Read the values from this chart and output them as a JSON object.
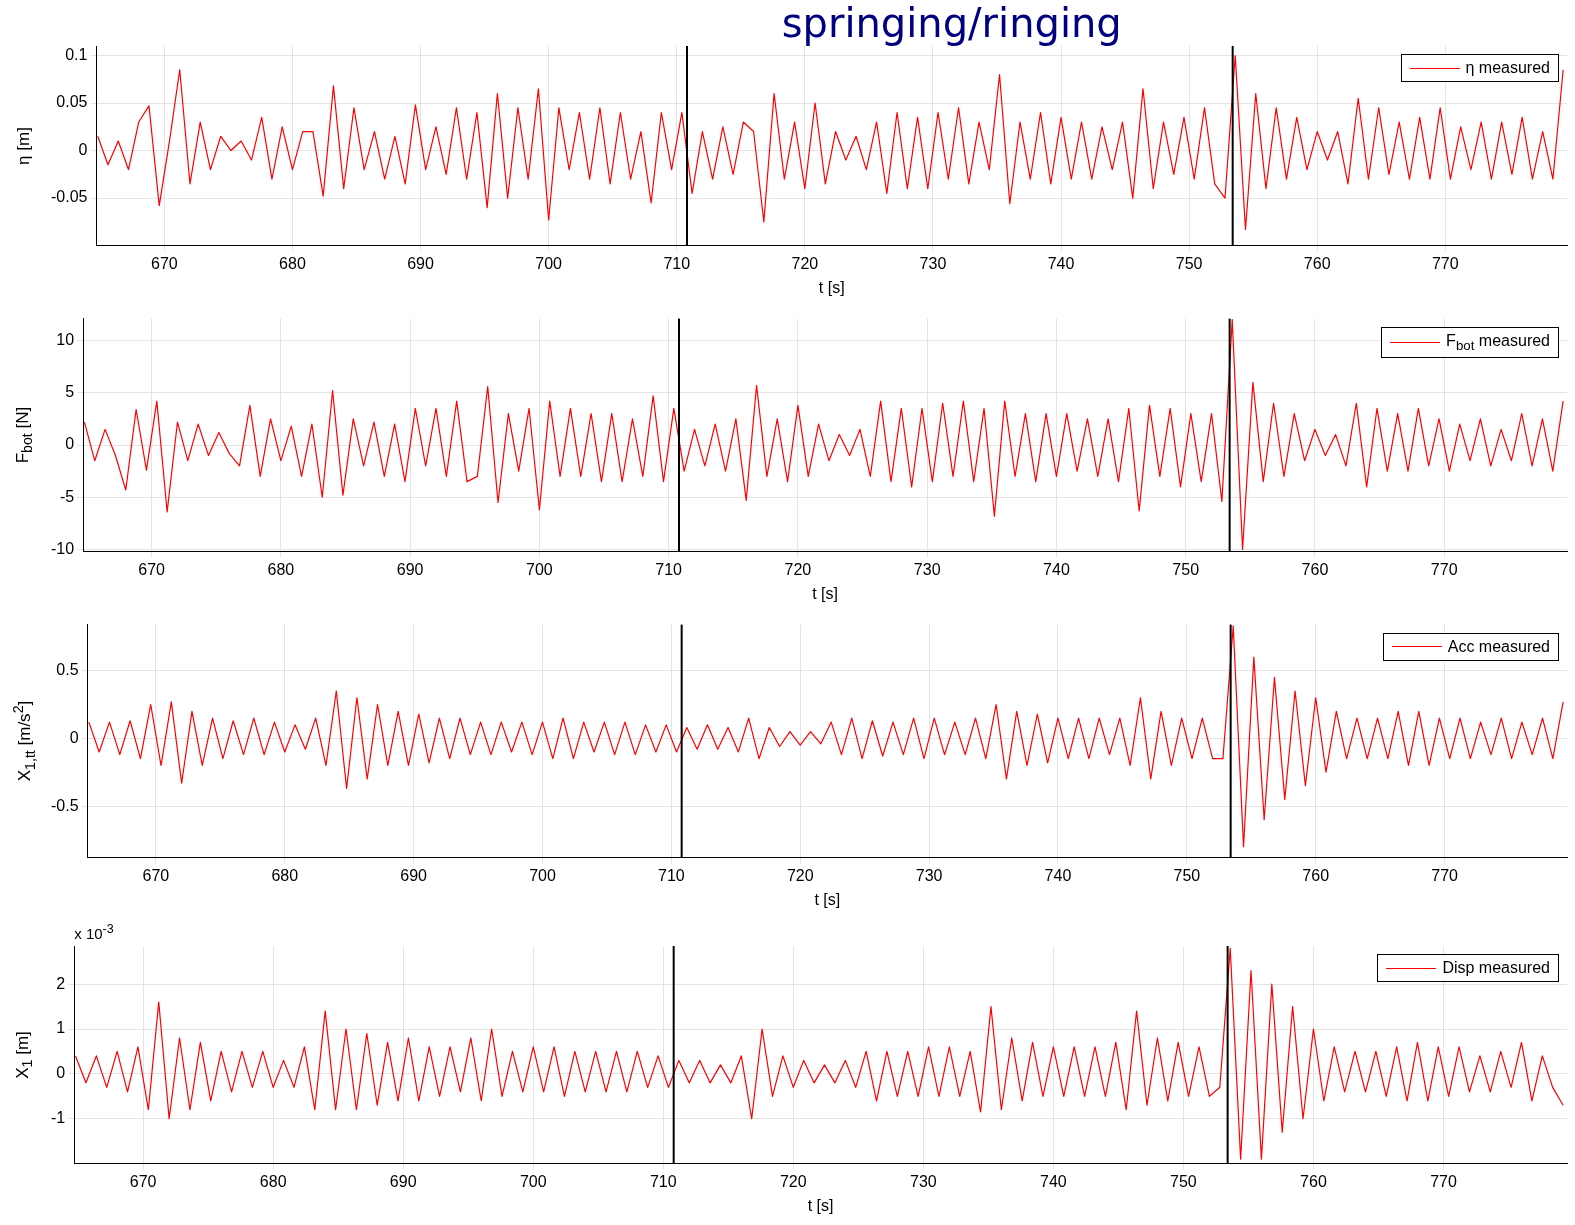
{
  "chart_data": [
    {
      "type": "line",
      "title": "springing/ringing",
      "xlabel": "t [s]",
      "ylabel": "η [m]",
      "xlim": [
        664.7,
        779.5
      ],
      "xticks": [
        670,
        680,
        690,
        700,
        710,
        720,
        730,
        740,
        750,
        760,
        770
      ],
      "ylim": [
        -0.1,
        0.11
      ],
      "yticks": [
        -0.05,
        0,
        0.05,
        0.1
      ],
      "grid": true,
      "legend": "top right",
      "ref_lines": [
        {
          "axis": "x",
          "value": 710.8,
          "color": "#000000"
        },
        {
          "axis": "x",
          "value": 753.4,
          "color": "#000000"
        }
      ],
      "x": [
        664.8,
        665.6,
        666.4,
        667.2,
        668.0,
        668.8,
        669.6,
        670.4,
        671.2,
        672.0,
        672.8,
        673.6,
        674.4,
        675.2,
        676.0,
        676.8,
        677.6,
        678.4,
        679.2,
        680.0,
        680.8,
        681.6,
        682.4,
        683.2,
        684.0,
        684.8,
        685.6,
        686.4,
        687.2,
        688.0,
        688.8,
        689.6,
        690.4,
        691.2,
        692.0,
        692.8,
        693.6,
        694.4,
        695.2,
        696.0,
        696.8,
        697.6,
        698.4,
        699.2,
        700.0,
        700.8,
        701.6,
        702.4,
        703.2,
        704.0,
        704.8,
        705.6,
        706.4,
        707.2,
        708.0,
        708.8,
        709.6,
        710.4,
        711.2,
        712.0,
        712.8,
        713.6,
        714.4,
        715.2,
        716.0,
        716.8,
        717.6,
        718.4,
        719.2,
        720.0,
        720.8,
        721.6,
        722.4,
        723.2,
        724.0,
        724.8,
        725.6,
        726.4,
        727.2,
        728.0,
        728.8,
        729.6,
        730.4,
        731.2,
        732.0,
        732.8,
        733.6,
        734.4,
        735.2,
        736.0,
        736.8,
        737.6,
        738.4,
        739.2,
        740.0,
        740.8,
        741.6,
        742.4,
        743.2,
        744.0,
        744.8,
        745.6,
        746.4,
        747.2,
        748.0,
        748.8,
        749.6,
        750.4,
        751.2,
        752.0,
        752.8,
        753.6,
        754.4,
        755.2,
        756.0,
        756.8,
        757.6,
        758.4,
        759.2,
        760.0,
        760.8,
        761.6,
        762.4,
        763.2,
        764.0,
        764.8,
        765.6,
        766.4,
        767.2,
        768.0,
        768.8,
        769.6,
        770.4,
        771.2,
        772.0,
        772.8,
        773.6,
        774.4,
        775.2,
        776.0,
        776.8,
        777.6,
        778.4,
        779.2
      ],
      "series": [
        {
          "name": "η measured",
          "color": "#ff0000",
          "values": [
            0.015,
            -0.015,
            0.01,
            -0.02,
            0.03,
            0.047,
            -0.058,
            0.01,
            0.085,
            -0.035,
            0.03,
            -0.02,
            0.015,
            0.0,
            0.01,
            -0.01,
            0.035,
            -0.03,
            0.025,
            -0.02,
            0.02,
            0.02,
            -0.048,
            0.068,
            -0.04,
            0.045,
            -0.02,
            0.02,
            -0.03,
            0.015,
            -0.035,
            0.048,
            -0.02,
            0.025,
            -0.025,
            0.045,
            -0.03,
            0.04,
            -0.06,
            0.06,
            -0.05,
            0.045,
            -0.03,
            0.065,
            -0.073,
            0.045,
            -0.02,
            0.04,
            -0.03,
            0.045,
            -0.035,
            0.04,
            -0.03,
            0.02,
            -0.055,
            0.04,
            -0.02,
            0.04,
            -0.045,
            0.02,
            -0.03,
            0.025,
            -0.025,
            0.03,
            0.02,
            -0.075,
            0.06,
            -0.03,
            0.03,
            -0.04,
            0.05,
            -0.035,
            0.02,
            -0.01,
            0.015,
            -0.02,
            0.03,
            -0.045,
            0.04,
            -0.04,
            0.035,
            -0.04,
            0.04,
            -0.03,
            0.045,
            -0.035,
            0.03,
            -0.02,
            0.08,
            -0.056,
            0.03,
            -0.03,
            0.04,
            -0.035,
            0.035,
            -0.03,
            0.03,
            -0.03,
            0.025,
            -0.02,
            0.03,
            -0.05,
            0.065,
            -0.04,
            0.03,
            -0.025,
            0.035,
            -0.03,
            0.045,
            -0.035,
            -0.05,
            0.1,
            -0.083,
            0.06,
            -0.04,
            0.045,
            -0.03,
            0.035,
            -0.02,
            0.02,
            -0.01,
            0.02,
            -0.035,
            0.055,
            -0.03,
            0.045,
            -0.025,
            0.03,
            -0.03,
            0.035,
            -0.03,
            0.045,
            -0.03,
            0.025,
            -0.02,
            0.03,
            -0.03,
            0.03,
            -0.025,
            0.035,
            -0.03,
            0.02,
            -0.03,
            0.085
          ]
        }
      ]
    },
    {
      "type": "line",
      "xlabel": "t [s]",
      "ylabel": "F$_{bot}$ [N]",
      "xlim": [
        664.7,
        779.5
      ],
      "xticks": [
        670,
        680,
        690,
        700,
        710,
        720,
        730,
        740,
        750,
        760,
        770
      ],
      "ylim": [
        -10.2,
        12.1
      ],
      "yticks": [
        -10,
        -5,
        0,
        5,
        10
      ],
      "grid": true,
      "legend": "top right",
      "ref_lines": [
        {
          "axis": "x",
          "value": 710.8,
          "color": "#000000"
        },
        {
          "axis": "x",
          "value": 753.4,
          "color": "#000000"
        }
      ],
      "x": [
        664.8,
        665.6,
        666.4,
        667.2,
        668.0,
        668.8,
        669.6,
        670.4,
        671.2,
        672.0,
        672.8,
        673.6,
        674.4,
        675.2,
        676.0,
        676.8,
        677.6,
        678.4,
        679.2,
        680.0,
        680.8,
        681.6,
        682.4,
        683.2,
        684.0,
        684.8,
        685.6,
        686.4,
        687.2,
        688.0,
        688.8,
        689.6,
        690.4,
        691.2,
        692.0,
        692.8,
        693.6,
        694.4,
        695.2,
        696.0,
        696.8,
        697.6,
        698.4,
        699.2,
        700.0,
        700.8,
        701.6,
        702.4,
        703.2,
        704.0,
        704.8,
        705.6,
        706.4,
        707.2,
        708.0,
        708.8,
        709.6,
        710.4,
        711.2,
        712.0,
        712.8,
        713.6,
        714.4,
        715.2,
        716.0,
        716.8,
        717.6,
        718.4,
        719.2,
        720.0,
        720.8,
        721.6,
        722.4,
        723.2,
        724.0,
        724.8,
        725.6,
        726.4,
        727.2,
        728.0,
        728.8,
        729.6,
        730.4,
        731.2,
        732.0,
        732.8,
        733.6,
        734.4,
        735.2,
        736.0,
        736.8,
        737.6,
        738.4,
        739.2,
        740.0,
        740.8,
        741.6,
        742.4,
        743.2,
        744.0,
        744.8,
        745.6,
        746.4,
        747.2,
        748.0,
        748.8,
        749.6,
        750.4,
        751.2,
        752.0,
        752.8,
        753.6,
        754.4,
        755.2,
        756.0,
        756.8,
        757.6,
        758.4,
        759.2,
        760.0,
        760.8,
        761.6,
        762.4,
        763.2,
        764.0,
        764.8,
        765.6,
        766.4,
        767.2,
        768.0,
        768.8,
        769.6,
        770.4,
        771.2,
        772.0,
        772.8,
        773.6,
        774.4,
        775.2,
        776.0,
        776.8,
        777.6,
        778.4,
        779.2
      ],
      "series": [
        {
          "name": "F$_{bot}$ measured",
          "color": "#ff0000",
          "values": [
            2.2,
            -1.5,
            1.5,
            -1.0,
            -4.3,
            3.4,
            -2.4,
            4.2,
            -6.4,
            2.2,
            -1.5,
            2.0,
            -1.0,
            1.2,
            -0.8,
            -2.0,
            3.8,
            -3.0,
            2.5,
            -1.5,
            1.8,
            -3.0,
            2.0,
            -5.0,
            5.2,
            -4.8,
            2.5,
            -2.0,
            2.2,
            -3.0,
            2.0,
            -3.5,
            3.5,
            -2.0,
            3.5,
            -3.0,
            4.2,
            -3.5,
            -3.0,
            5.6,
            -5.5,
            3.0,
            -2.5,
            3.5,
            -6.2,
            4.2,
            -3.0,
            3.5,
            -3.0,
            3.0,
            -3.5,
            3.0,
            -3.5,
            2.5,
            -3.0,
            4.7,
            -3.5,
            3.5,
            -2.5,
            1.5,
            -2.0,
            2.0,
            -2.5,
            2.5,
            -5.3,
            5.7,
            -3.0,
            2.5,
            -3.5,
            3.8,
            -3.0,
            2.0,
            -1.5,
            1.0,
            -1.0,
            1.5,
            -3.0,
            4.2,
            -3.5,
            3.5,
            -4.0,
            3.5,
            -3.5,
            4.0,
            -3.0,
            4.2,
            -3.5,
            3.5,
            -6.8,
            4.2,
            -3.0,
            3.0,
            -3.5,
            3.0,
            -3.0,
            3.0,
            -2.5,
            2.5,
            -3.0,
            2.5,
            -3.5,
            3.5,
            -6.3,
            3.8,
            -3.0,
            3.5,
            -4.0,
            3.0,
            -3.5,
            3.0,
            -5.4,
            12,
            -10,
            6.0,
            -3.5,
            4.0,
            -3.0,
            3.0,
            -1.5,
            1.5,
            -1.0,
            1.0,
            -2.0,
            4.0,
            -4.0,
            3.5,
            -2.5,
            3.0,
            -2.5,
            3.5,
            -2.0,
            2.5,
            -2.5,
            2.0,
            -1.5,
            2.5,
            -2.0,
            1.5,
            -1.5,
            3.0,
            -2.0,
            2.5,
            -2.5,
            4.2
          ]
        }
      ]
    },
    {
      "type": "line",
      "xlabel": "t [s]",
      "ylabel": "X$_{1,tt}$ [m/s$^{2}$]",
      "xlim": [
        664.7,
        779.5
      ],
      "xticks": [
        670,
        680,
        690,
        700,
        710,
        720,
        730,
        740,
        750,
        760,
        770
      ],
      "ylim": [
        -0.88,
        0.84
      ],
      "yticks": [
        -0.5,
        0,
        0.5
      ],
      "grid": true,
      "legend": "top right",
      "ref_lines": [
        {
          "axis": "x",
          "value": 710.8,
          "color": "#000000"
        },
        {
          "axis": "x",
          "value": 753.4,
          "color": "#000000"
        }
      ],
      "x": [
        664.8,
        665.6,
        666.4,
        667.2,
        668.0,
        668.8,
        669.6,
        670.4,
        671.2,
        672.0,
        672.8,
        673.6,
        674.4,
        675.2,
        676.0,
        676.8,
        677.6,
        678.4,
        679.2,
        680.0,
        680.8,
        681.6,
        682.4,
        683.2,
        684.0,
        684.8,
        685.6,
        686.4,
        687.2,
        688.0,
        688.8,
        689.6,
        690.4,
        691.2,
        692.0,
        692.8,
        693.6,
        694.4,
        695.2,
        696.0,
        696.8,
        697.6,
        698.4,
        699.2,
        700.0,
        700.8,
        701.6,
        702.4,
        703.2,
        704.0,
        704.8,
        705.6,
        706.4,
        707.2,
        708.0,
        708.8,
        709.6,
        710.4,
        711.2,
        712.0,
        712.8,
        713.6,
        714.4,
        715.2,
        716.0,
        716.8,
        717.6,
        718.4,
        719.2,
        720.0,
        720.8,
        721.6,
        722.4,
        723.2,
        724.0,
        724.8,
        725.6,
        726.4,
        727.2,
        728.0,
        728.8,
        729.6,
        730.4,
        731.2,
        732.0,
        732.8,
        733.6,
        734.4,
        735.2,
        736.0,
        736.8,
        737.6,
        738.4,
        739.2,
        740.0,
        740.8,
        741.6,
        742.4,
        743.2,
        744.0,
        744.8,
        745.6,
        746.4,
        747.2,
        748.0,
        748.8,
        749.6,
        750.4,
        751.2,
        752.0,
        752.8,
        753.6,
        754.4,
        755.2,
        756.0,
        756.8,
        757.6,
        758.4,
        759.2,
        760.0,
        760.8,
        761.6,
        762.4,
        763.2,
        764.0,
        764.8,
        765.6,
        766.4,
        767.2,
        768.0,
        768.8,
        769.6,
        770.4,
        771.2,
        772.0,
        772.8,
        773.6,
        774.4,
        775.2,
        776.0,
        776.8,
        777.6,
        778.4,
        779.2
      ],
      "series": [
        {
          "name": "Acc measured",
          "color": "#ff0000",
          "values": [
            0.12,
            -0.1,
            0.12,
            -0.12,
            0.13,
            -0.15,
            0.25,
            -0.2,
            0.27,
            -0.33,
            0.2,
            -0.2,
            0.15,
            -0.15,
            0.13,
            -0.12,
            0.15,
            -0.12,
            0.12,
            -0.1,
            0.1,
            -0.08,
            0.15,
            -0.2,
            0.35,
            -0.37,
            0.3,
            -0.3,
            0.25,
            -0.2,
            0.2,
            -0.2,
            0.18,
            -0.18,
            0.15,
            -0.15,
            0.15,
            -0.12,
            0.12,
            -0.12,
            0.12,
            -0.1,
            0.12,
            -0.12,
            0.12,
            -0.15,
            0.15,
            -0.15,
            0.12,
            -0.1,
            0.12,
            -0.12,
            0.12,
            -0.12,
            0.1,
            -0.1,
            0.1,
            -0.1,
            0.08,
            -0.08,
            0.1,
            -0.08,
            0.08,
            -0.1,
            0.15,
            -0.15,
            0.08,
            -0.06,
            0.05,
            -0.05,
            0.05,
            -0.04,
            0.12,
            -0.12,
            0.15,
            -0.15,
            0.13,
            -0.13,
            0.12,
            -0.12,
            0.15,
            -0.15,
            0.15,
            -0.12,
            0.12,
            -0.12,
            0.15,
            -0.15,
            0.25,
            -0.3,
            0.2,
            -0.2,
            0.18,
            -0.18,
            0.15,
            -0.15,
            0.15,
            -0.15,
            0.15,
            -0.12,
            0.15,
            -0.2,
            0.3,
            -0.3,
            0.2,
            -0.2,
            0.15,
            -0.15,
            0.15,
            -0.15,
            -0.15,
            0.83,
            -0.8,
            0.6,
            -0.6,
            0.45,
            -0.45,
            0.35,
            -0.35,
            0.3,
            -0.25,
            0.2,
            -0.15,
            0.15,
            -0.15,
            0.15,
            -0.15,
            0.2,
            -0.2,
            0.2,
            -0.2,
            0.15,
            -0.15,
            0.15,
            -0.15,
            0.12,
            -0.12,
            0.15,
            -0.15,
            0.12,
            -0.12,
            0.15,
            -0.15,
            0.27
          ]
        }
      ]
    },
    {
      "type": "line",
      "xlabel": "t [s]",
      "ylabel": "X$_{1}$ [m]",
      "annotations": [
        "x 10$^{-3}$"
      ],
      "xlim": [
        664.7,
        779.5
      ],
      "xticks": [
        670,
        680,
        690,
        700,
        710,
        720,
        730,
        740,
        750,
        760,
        770
      ],
      "ylim": [
        -2,
        2.85
      ],
      "yticks": [
        -1,
        0,
        1,
        2
      ],
      "grid": true,
      "legend": "top right",
      "ref_lines": [
        {
          "axis": "x",
          "value": 710.8,
          "color": "#000000"
        },
        {
          "axis": "x",
          "value": 753.4,
          "color": "#000000"
        }
      ],
      "x": [
        664.8,
        665.6,
        666.4,
        667.2,
        668.0,
        668.8,
        669.6,
        670.4,
        671.2,
        672.0,
        672.8,
        673.6,
        674.4,
        675.2,
        676.0,
        676.8,
        677.6,
        678.4,
        679.2,
        680.0,
        680.8,
        681.6,
        682.4,
        683.2,
        684.0,
        684.8,
        685.6,
        686.4,
        687.2,
        688.0,
        688.8,
        689.6,
        690.4,
        691.2,
        692.0,
        692.8,
        693.6,
        694.4,
        695.2,
        696.0,
        696.8,
        697.6,
        698.4,
        699.2,
        700.0,
        700.8,
        701.6,
        702.4,
        703.2,
        704.0,
        704.8,
        705.6,
        706.4,
        707.2,
        708.0,
        708.8,
        709.6,
        710.4,
        711.2,
        712.0,
        712.8,
        713.6,
        714.4,
        715.2,
        716.0,
        716.8,
        717.6,
        718.4,
        719.2,
        720.0,
        720.8,
        721.6,
        722.4,
        723.2,
        724.0,
        724.8,
        725.6,
        726.4,
        727.2,
        728.0,
        728.8,
        729.6,
        730.4,
        731.2,
        732.0,
        732.8,
        733.6,
        734.4,
        735.2,
        736.0,
        736.8,
        737.6,
        738.4,
        739.2,
        740.0,
        740.8,
        741.6,
        742.4,
        743.2,
        744.0,
        744.8,
        745.6,
        746.4,
        747.2,
        748.0,
        748.8,
        749.6,
        750.4,
        751.2,
        752.0,
        752.8,
        753.6,
        754.4,
        755.2,
        756.0,
        756.8,
        757.6,
        758.4,
        759.2,
        760.0,
        760.8,
        761.6,
        762.4,
        763.2,
        764.0,
        764.8,
        765.6,
        766.4,
        767.2,
        768.0,
        768.8,
        769.6,
        770.4,
        771.2,
        772.0,
        772.8,
        773.6,
        774.4,
        775.2,
        776.0,
        776.8,
        777.6,
        778.4,
        779.2
      ],
      "series": [
        {
          "name": "Disp measured",
          "color": "#ff0000",
          "values": [
            0.4,
            -0.2,
            0.4,
            -0.3,
            0.5,
            -0.4,
            0.6,
            -0.8,
            1.6,
            -1.0,
            0.8,
            -0.8,
            0.7,
            -0.6,
            0.5,
            -0.4,
            0.5,
            -0.3,
            0.5,
            -0.3,
            0.3,
            -0.3,
            0.6,
            -0.8,
            1.4,
            -0.8,
            1.0,
            -0.8,
            0.9,
            -0.7,
            0.7,
            -0.6,
            0.8,
            -0.6,
            0.6,
            -0.5,
            0.6,
            -0.4,
            0.8,
            -0.6,
            1.0,
            -0.5,
            0.5,
            -0.4,
            0.6,
            -0.4,
            0.6,
            -0.5,
            0.5,
            -0.4,
            0.5,
            -0.4,
            0.5,
            -0.4,
            0.5,
            -0.3,
            0.4,
            -0.3,
            0.3,
            -0.2,
            0.3,
            -0.2,
            0.2,
            -0.2,
            0.4,
            -1.0,
            1.0,
            -0.5,
            0.4,
            -0.3,
            0.3,
            -0.2,
            0.2,
            -0.2,
            0.3,
            -0.3,
            0.5,
            -0.6,
            0.5,
            -0.5,
            0.5,
            -0.5,
            0.6,
            -0.5,
            0.6,
            -0.5,
            0.5,
            -0.85,
            1.5,
            -0.8,
            0.8,
            -0.6,
            0.7,
            -0.5,
            0.6,
            -0.5,
            0.6,
            -0.5,
            0.6,
            -0.5,
            0.7,
            -0.8,
            1.4,
            -0.7,
            0.8,
            -0.6,
            0.7,
            -0.5,
            0.6,
            -0.5,
            -0.3,
            2.8,
            -1.9,
            2.3,
            -1.9,
            2.0,
            -1.3,
            1.5,
            -1.0,
            1.0,
            -0.6,
            0.6,
            -0.4,
            0.5,
            -0.4,
            0.5,
            -0.5,
            0.6,
            -0.6,
            0.7,
            -0.6,
            0.6,
            -0.5,
            0.6,
            -0.4,
            0.4,
            -0.4,
            0.5,
            -0.3,
            0.7,
            -0.6,
            0.4,
            -0.3,
            -0.7
          ]
        }
      ]
    }
  ]
}
